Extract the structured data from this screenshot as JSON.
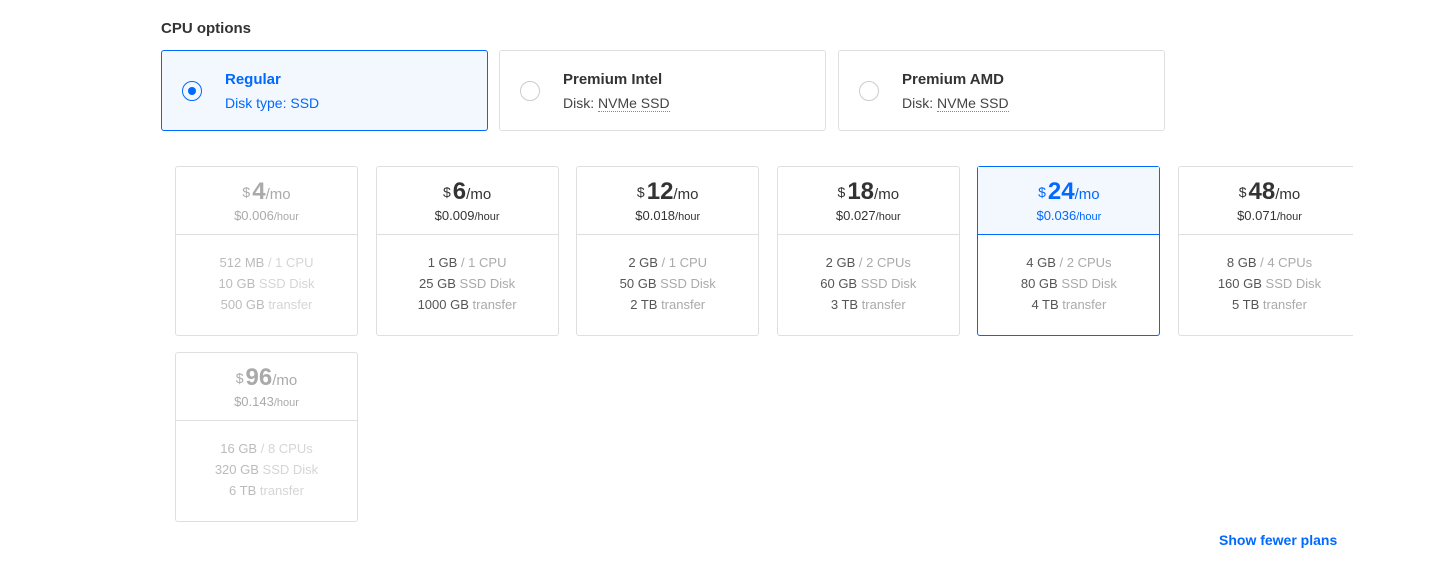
{
  "heading": "CPU options",
  "cpu_options": [
    {
      "title": "Regular",
      "disk_label": "Disk type: ",
      "disk": "SSD",
      "selected": true
    },
    {
      "title": "Premium Intel",
      "disk_label": "Disk: ",
      "disk": "NVMe SSD",
      "selected": false
    },
    {
      "title": "Premium AMD",
      "disk_label": "Disk: ",
      "disk": "NVMe SSD",
      "selected": false
    }
  ],
  "plans": [
    {
      "currency": "$",
      "price": "4",
      "per": "/mo",
      "hourly": "$0.006",
      "hour": "/hour",
      "mem": "512 MB",
      "cpu": " / 1 CPU",
      "disk": "10 GB",
      "disk_l": " SSD Disk",
      "transfer": "500 GB",
      "transfer_l": " transfer",
      "state": "disabled"
    },
    {
      "currency": "$",
      "price": "6",
      "per": "/mo",
      "hourly": "$0.009",
      "hour": "/hour",
      "mem": "1 GB",
      "cpu": " / 1 CPU",
      "disk": "25 GB",
      "disk_l": " SSD Disk",
      "transfer": "1000 GB",
      "transfer_l": " transfer",
      "state": "normal"
    },
    {
      "currency": "$",
      "price": "12",
      "per": "/mo",
      "hourly": "$0.018",
      "hour": "/hour",
      "mem": "2 GB",
      "cpu": " / 1 CPU",
      "disk": "50 GB",
      "disk_l": " SSD Disk",
      "transfer": "2 TB",
      "transfer_l": " transfer",
      "state": "normal"
    },
    {
      "currency": "$",
      "price": "18",
      "per": "/mo",
      "hourly": "$0.027",
      "hour": "/hour",
      "mem": "2 GB",
      "cpu": " / 2 CPUs",
      "disk": "60 GB",
      "disk_l": " SSD Disk",
      "transfer": "3 TB",
      "transfer_l": " transfer",
      "state": "normal"
    },
    {
      "currency": "$",
      "price": "24",
      "per": "/mo",
      "hourly": "$0.036",
      "hour": "/hour",
      "mem": "4 GB",
      "cpu": " / 2 CPUs",
      "disk": "80 GB",
      "disk_l": " SSD Disk",
      "transfer": "4 TB",
      "transfer_l": " transfer",
      "state": "selected"
    },
    {
      "currency": "$",
      "price": "48",
      "per": "/mo",
      "hourly": "$0.071",
      "hour": "/hour",
      "mem": "8 GB",
      "cpu": " / 4 CPUs",
      "disk": "160 GB",
      "disk_l": " SSD Disk",
      "transfer": "5 TB",
      "transfer_l": " transfer",
      "state": "normal"
    },
    {
      "currency": "$",
      "price": "96",
      "per": "/mo",
      "hourly": "$0.143",
      "hour": "/hour",
      "mem": "16 GB",
      "cpu": " / 8 CPUs",
      "disk": "320 GB",
      "disk_l": " SSD Disk",
      "transfer": "6 TB",
      "transfer_l": " transfer",
      "state": "disabled"
    }
  ],
  "show_fewer": "Show fewer plans",
  "colors": {
    "accent": "#0069ff",
    "border": "#dfdfdf",
    "selected_bg": "#f3f8ff"
  }
}
